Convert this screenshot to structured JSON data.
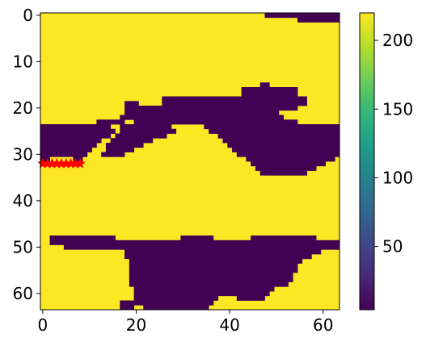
{
  "chart_data": {
    "type": "heatmap",
    "title": "",
    "xlabel": "",
    "ylabel": "",
    "grid_size": [
      64,
      64
    ],
    "xlim": [
      -0.5,
      63.5
    ],
    "ylim": [
      63.5,
      -0.5
    ],
    "x_ticks": [
      0,
      20,
      40,
      60
    ],
    "y_ticks": [
      0,
      10,
      20,
      30,
      40,
      50,
      60
    ],
    "colormap": "viridis",
    "color_low": "#440154",
    "color_high": "#fde725",
    "colorbar": {
      "min": 4,
      "max": 220,
      "ticks": [
        50,
        100,
        150,
        200
      ]
    },
    "value_low": 4,
    "value_high": 220,
    "low_row_spans": [
      [
        [
          48,
          63
        ]
      ],
      [
        [
          55,
          63
        ]
      ],
      [],
      [],
      [],
      [],
      [],
      [],
      [],
      [],
      [],
      [],
      [],
      [],
      [],
      [
        [
          47,
          48
        ]
      ],
      [
        [
          43,
          54
        ]
      ],
      [
        [
          43,
          54
        ]
      ],
      [
        [
          26,
          56
        ]
      ],
      [
        [
          18,
          20
        ],
        [
          26,
          56
        ]
      ],
      [
        [
          18,
          54
        ]
      ],
      [
        [
          18,
          50
        ]
      ],
      [
        [
          17,
          51
        ]
      ],
      [
        [
          12,
          17
        ],
        [
          20,
          54
        ]
      ],
      [
        [
          0,
          14
        ],
        [
          17,
          27
        ],
        [
          35,
          63
        ]
      ],
      [
        [
          0,
          15
        ],
        [
          17,
          28
        ],
        [
          36,
          63
        ]
      ],
      [
        [
          0,
          14
        ],
        [
          16,
          26
        ],
        [
          38,
          63
        ]
      ],
      [
        [
          0,
          12
        ],
        [
          15,
          23
        ],
        [
          39,
          63
        ]
      ],
      [
        [
          0,
          11
        ],
        [
          14,
          21
        ],
        [
          40,
          63
        ]
      ],
      [
        [
          0,
          10
        ],
        [
          14,
          19
        ],
        [
          41,
          63
        ]
      ],
      [
        [
          0,
          9
        ],
        [
          13,
          17
        ],
        [
          42,
          63
        ]
      ],
      [
        [
          0,
          1
        ],
        [
          7,
          8
        ],
        [
          44,
          62
        ]
      ],
      [
        [
          45,
          60
        ]
      ],
      [
        [
          46,
          58
        ]
      ],
      [
        [
          47,
          56
        ]
      ],
      [],
      [],
      [],
      [],
      [],
      [],
      [],
      [],
      [],
      [],
      [],
      [],
      [],
      [
        [
          2,
          15
        ],
        [
          30,
          36
        ],
        [
          45,
          58
        ]
      ],
      [
        [
          2,
          63
        ]
      ],
      [
        [
          5,
          18
        ],
        [
          19,
          63
        ]
      ],
      [
        [
          18,
          59
        ]
      ],
      [
        [
          18,
          57
        ]
      ],
      [
        [
          19,
          55
        ]
      ],
      [
        [
          19,
          54
        ]
      ],
      [
        [
          19,
          54
        ]
      ],
      [
        [
          19,
          53
        ]
      ],
      [
        [
          19,
          53
        ]
      ],
      [
        [
          19,
          52
        ]
      ],
      [
        [
          20,
          49
        ]
      ],
      [
        [
          20,
          48
        ]
      ],
      [
        [
          20,
          37
        ],
        [
          42,
          47
        ]
      ],
      [
        [
          17,
          36
        ]
      ],
      [
        [
          17,
          19
        ],
        [
          22,
          35
        ]
      ]
    ],
    "markers": {
      "shape": "star",
      "color": "#ff0000",
      "points": [
        [
          0,
          32
        ],
        [
          1,
          32
        ],
        [
          2,
          32
        ],
        [
          3,
          32
        ],
        [
          4,
          32
        ],
        [
          5,
          32
        ],
        [
          6,
          32
        ],
        [
          7,
          32
        ],
        [
          8,
          32
        ]
      ]
    }
  }
}
